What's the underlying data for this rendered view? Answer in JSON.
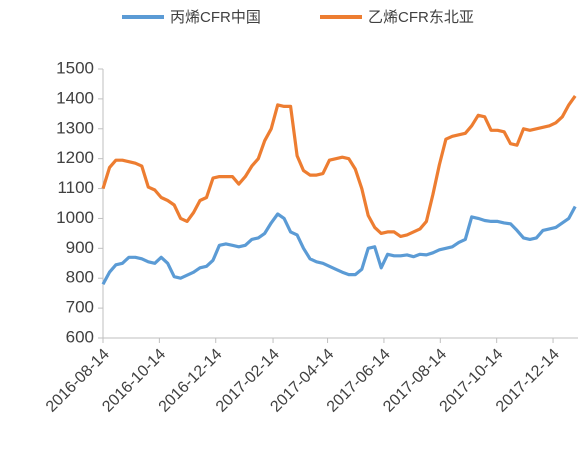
{
  "chart_data": {
    "type": "line",
    "x": [
      "2016-08-14",
      "2016-08-21",
      "2016-08-28",
      "2016-09-04",
      "2016-09-11",
      "2016-09-18",
      "2016-09-25",
      "2016-10-02",
      "2016-10-09",
      "2016-10-16",
      "2016-10-23",
      "2016-10-30",
      "2016-11-06",
      "2016-11-13",
      "2016-11-20",
      "2016-11-27",
      "2016-12-04",
      "2016-12-11",
      "2016-12-18",
      "2016-12-25",
      "2017-01-01",
      "2017-01-08",
      "2017-01-15",
      "2017-01-22",
      "2017-01-29",
      "2017-02-05",
      "2017-02-12",
      "2017-02-19",
      "2017-02-26",
      "2017-03-05",
      "2017-03-12",
      "2017-03-19",
      "2017-03-26",
      "2017-04-02",
      "2017-04-09",
      "2017-04-16",
      "2017-04-23",
      "2017-04-30",
      "2017-05-07",
      "2017-05-14",
      "2017-05-21",
      "2017-05-28",
      "2017-06-04",
      "2017-06-11",
      "2017-06-18",
      "2017-06-25",
      "2017-07-02",
      "2017-07-09",
      "2017-07-16",
      "2017-07-23",
      "2017-07-30",
      "2017-08-06",
      "2017-08-13",
      "2017-08-20",
      "2017-08-27",
      "2017-09-03",
      "2017-09-10",
      "2017-09-17",
      "2017-09-24",
      "2017-10-01",
      "2017-10-08",
      "2017-10-15",
      "2017-10-22",
      "2017-10-29",
      "2017-11-05",
      "2017-11-12",
      "2017-11-19",
      "2017-11-26",
      "2017-12-03",
      "2017-12-10",
      "2017-12-17",
      "2017-12-24",
      "2017-12-31",
      "2018-01-07"
    ],
    "series": [
      {
        "name": "丙烯CFR中国",
        "color": "#5b9bd5",
        "values": [
          780,
          820,
          845,
          850,
          870,
          870,
          865,
          855,
          850,
          870,
          850,
          805,
          800,
          810,
          820,
          835,
          840,
          860,
          910,
          915,
          910,
          905,
          910,
          930,
          935,
          950,
          985,
          1015,
          1000,
          955,
          945,
          900,
          865,
          855,
          850,
          840,
          830,
          820,
          812,
          812,
          830,
          900,
          905,
          835,
          880,
          875,
          875,
          878,
          872,
          880,
          878,
          885,
          895,
          900,
          905,
          920,
          930,
          1005,
          1000,
          993,
          990,
          990,
          985,
          982,
          960,
          935,
          930,
          935,
          960,
          965,
          970,
          985,
          1000,
          1040
        ]
      },
      {
        "name": "乙烯CFR东北亚",
        "color": "#ed7d31",
        "values": [
          1100,
          1170,
          1195,
          1195,
          1190,
          1185,
          1175,
          1105,
          1095,
          1070,
          1060,
          1045,
          1000,
          990,
          1020,
          1060,
          1070,
          1135,
          1140,
          1140,
          1140,
          1115,
          1140,
          1175,
          1200,
          1260,
          1300,
          1380,
          1375,
          1375,
          1210,
          1160,
          1145,
          1145,
          1150,
          1195,
          1200,
          1205,
          1200,
          1165,
          1100,
          1010,
          970,
          950,
          955,
          955,
          940,
          945,
          955,
          965,
          990,
          1080,
          1180,
          1265,
          1275,
          1280,
          1285,
          1310,
          1345,
          1340,
          1295,
          1295,
          1290,
          1250,
          1245,
          1300,
          1295,
          1300,
          1305,
          1310,
          1320,
          1340,
          1380,
          1410
        ]
      }
    ],
    "xlim": [
      "2016-08-14",
      "2018-01-10"
    ],
    "xticks": [
      "2016-08-14",
      "2016-10-14",
      "2016-12-14",
      "2017-02-14",
      "2017-04-14",
      "2017-06-14",
      "2017-08-14",
      "2017-10-14",
      "2017-12-14"
    ],
    "ylim": [
      600,
      1500
    ],
    "yticks": [
      600,
      700,
      800,
      900,
      1000,
      1100,
      1200,
      1300,
      1400,
      1500
    ],
    "legend": "top"
  }
}
